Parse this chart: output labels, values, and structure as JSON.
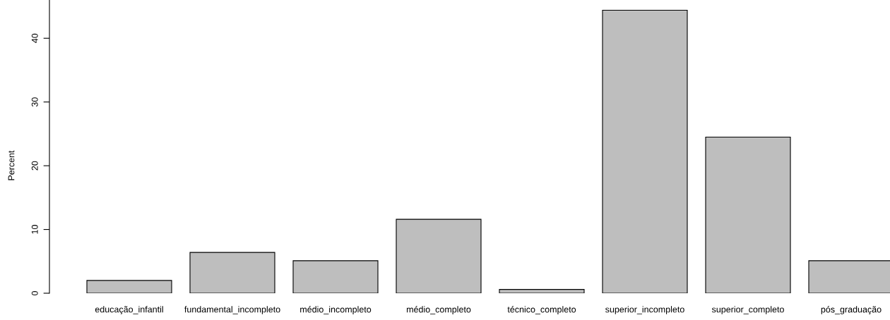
{
  "chart_data": {
    "type": "bar",
    "ylabel": "Percent",
    "categories": [
      "educação_infantil",
      "fundamental_incompleto",
      "médio_incompleto",
      "médio_completo",
      "técnico_completo",
      "superior_incompleto",
      "superior_completo",
      "pós_graduação"
    ],
    "values": [
      2.0,
      6.4,
      5.1,
      11.6,
      0.6,
      44.4,
      24.5,
      5.1
    ],
    "color": "#bebebe",
    "ylim": [
      0,
      46
    ],
    "yticks": [
      0,
      10,
      20,
      30,
      40
    ],
    "grid": false
  }
}
